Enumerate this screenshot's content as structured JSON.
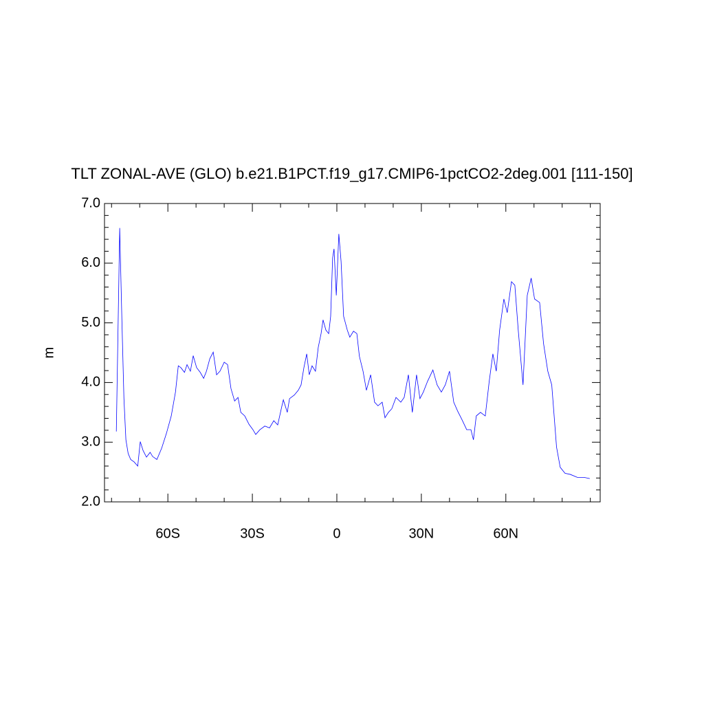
{
  "chart_data": {
    "type": "line",
    "title": "TLT ZONAL-AVE (GLO) b.e21.B1PCT.f19_g17.CMIP6-1pctCO2-2deg.001 [111-150]",
    "ylabel": "m",
    "x": [
      -78.3,
      -77.1,
      -76.3,
      -75.6,
      -74.9,
      -74.1,
      -73.2,
      -72.0,
      -70.7,
      -69.8,
      -68.8,
      -67.6,
      -66.3,
      -65.4,
      -63.9,
      -62.2,
      -60.5,
      -58.8,
      -57.3,
      -56.3,
      -55.4,
      -54.1,
      -53.2,
      -52.0,
      -51.0,
      -49.8,
      -48.5,
      -47.3,
      -46.3,
      -45.1,
      -43.9,
      -42.7,
      -41.5,
      -40.0,
      -38.8,
      -37.6,
      -36.3,
      -35.1,
      -34.1,
      -32.7,
      -31.2,
      -29.8,
      -28.8,
      -27.3,
      -25.6,
      -23.9,
      -22.4,
      -21.0,
      -19.5,
      -19.0,
      -17.6,
      -16.8,
      -15.1,
      -13.7,
      -12.7,
      -11.7,
      -10.7,
      -9.8,
      -8.8,
      -7.6,
      -6.6,
      -5.6,
      -4.9,
      -3.9,
      -2.9,
      -2.2,
      -1.5,
      -1.0,
      -0.2,
      0.7,
      1.5,
      2.4,
      3.7,
      4.6,
      5.9,
      7.1,
      8.0,
      9.3,
      10.5,
      12.0,
      13.4,
      14.6,
      16.1,
      17.1,
      18.3,
      19.5,
      21.0,
      22.7,
      23.9,
      25.4,
      26.8,
      28.3,
      29.5,
      30.7,
      32.2,
      34.1,
      35.6,
      37.1,
      38.5,
      40.0,
      41.5,
      42.9,
      44.4,
      46.1,
      47.6,
      48.5,
      49.5,
      51.0,
      52.7,
      54.1,
      55.4,
      56.6,
      57.8,
      59.3,
      60.5,
      62.0,
      63.2,
      64.4,
      66.1,
      67.6,
      69.0,
      70.2,
      72.0,
      73.4,
      74.9,
      76.3,
      78.0,
      79.3,
      81.0,
      82.9,
      85.4,
      87.8,
      89.8
    ],
    "series": [
      {
        "name": "TLT",
        "color": "#0000ff",
        "values": [
          3.18,
          6.59,
          5.0,
          3.73,
          3.04,
          2.81,
          2.71,
          2.67,
          2.6,
          3.01,
          2.86,
          2.75,
          2.83,
          2.76,
          2.71,
          2.9,
          3.15,
          3.44,
          3.84,
          4.28,
          4.25,
          4.17,
          4.3,
          4.19,
          4.45,
          4.25,
          4.17,
          4.07,
          4.19,
          4.4,
          4.51,
          4.13,
          4.19,
          4.34,
          4.3,
          3.9,
          3.69,
          3.75,
          3.5,
          3.44,
          3.3,
          3.21,
          3.13,
          3.21,
          3.27,
          3.24,
          3.36,
          3.29,
          3.61,
          3.71,
          3.5,
          3.73,
          3.79,
          3.87,
          3.96,
          4.25,
          4.48,
          4.13,
          4.28,
          4.19,
          4.59,
          4.82,
          5.05,
          4.88,
          4.82,
          5.11,
          6.09,
          6.24,
          5.46,
          6.49,
          6.03,
          5.11,
          4.88,
          4.76,
          4.86,
          4.82,
          4.44,
          4.19,
          3.87,
          4.13,
          3.67,
          3.61,
          3.67,
          3.41,
          3.5,
          3.56,
          3.75,
          3.67,
          3.75,
          4.13,
          3.5,
          4.13,
          3.73,
          3.84,
          4.02,
          4.21,
          3.96,
          3.84,
          3.96,
          4.19,
          3.67,
          3.52,
          3.38,
          3.21,
          3.21,
          3.04,
          3.44,
          3.5,
          3.44,
          4.02,
          4.48,
          4.19,
          4.88,
          5.4,
          5.17,
          5.69,
          5.63,
          4.88,
          3.96,
          5.46,
          5.75,
          5.4,
          5.34,
          4.65,
          4.19,
          3.96,
          2.92,
          2.58,
          2.48,
          2.46,
          2.41,
          2.41,
          2.39
        ]
      }
    ],
    "xlim": [
      -82.5,
      93.5
    ],
    "xticks": [
      {
        "value": -60,
        "label": "60S"
      },
      {
        "value": -30,
        "label": "30S"
      },
      0,
      {
        "value": 30,
        "label": "30N"
      },
      {
        "value": 60,
        "label": "60N"
      }
    ],
    "xminorticks": [
      -80,
      -70,
      -50,
      -40,
      -20,
      -10,
      10,
      20,
      40,
      50,
      70,
      80,
      90
    ],
    "ylim": [
      2,
      7
    ],
    "yticks": [
      {
        "value": 2,
        "label": "2.0"
      },
      {
        "value": 3,
        "label": "3.0"
      },
      {
        "value": 4,
        "label": "4.0"
      },
      {
        "value": 5,
        "label": "5.0"
      },
      {
        "value": 6,
        "label": "6.0"
      },
      {
        "value": 7,
        "label": "7.0"
      }
    ],
    "yminorticks": [
      2.2,
      2.4,
      2.6,
      2.8,
      3.2,
      3.4,
      3.6,
      3.8,
      4.2,
      4.4,
      4.6,
      4.8,
      5.2,
      5.4,
      5.6,
      5.8,
      6.2,
      6.4,
      6.6,
      6.8
    ]
  }
}
